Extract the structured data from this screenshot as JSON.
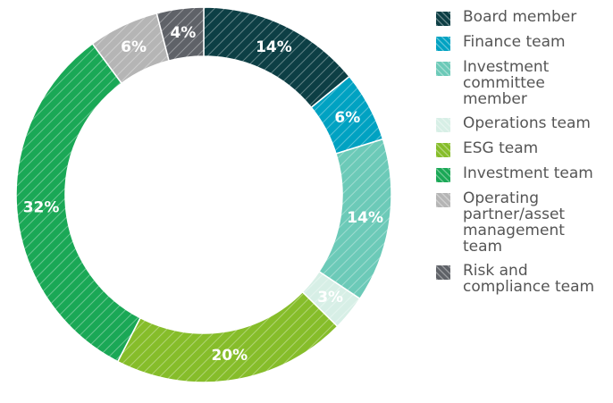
{
  "chart_data": {
    "type": "donut",
    "categories": [
      "Board member",
      "Finance team",
      "Investment committee member",
      "Operations team",
      "ESG team",
      "Investment team",
      "Operating partner/asset management team",
      "Risk and compliance team"
    ],
    "values": [
      14,
      6,
      14,
      3,
      20,
      32,
      6,
      4
    ],
    "value_labels": [
      "14%",
      "6%",
      "14%",
      "3%",
      "20%",
      "32%",
      "6%",
      "4%"
    ],
    "colors": [
      "#0d3f45",
      "#00a2c2",
      "#6ccab8",
      "#d7efe6",
      "#86bd2a",
      "#1aa856",
      "#b5b5b5",
      "#5f6268"
    ]
  }
}
